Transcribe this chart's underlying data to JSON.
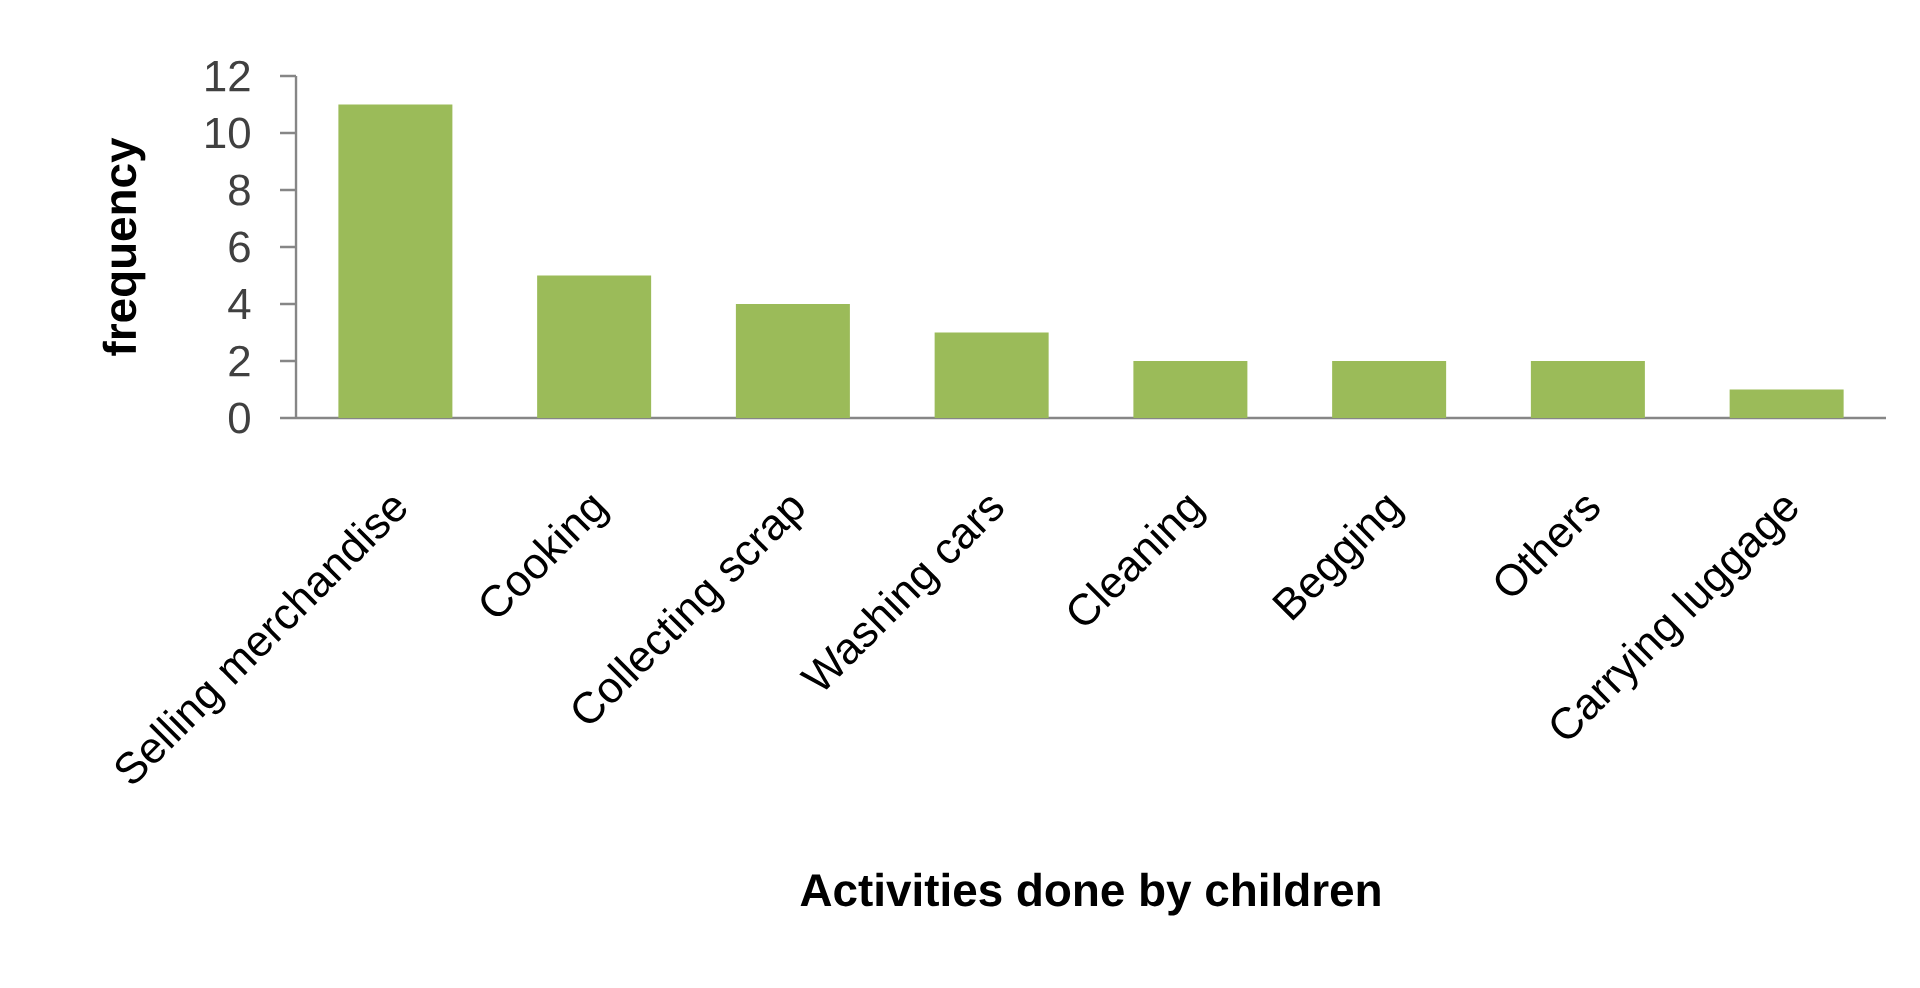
{
  "chart_data": {
    "type": "bar",
    "xlabel": "Activities done by children",
    "ylabel": "frequency",
    "categories": [
      "Selling merchandise",
      "Cooking",
      "Collecting scrap",
      "Washing cars",
      "Cleaning",
      "Begging",
      "Others",
      "Carrying luggage"
    ],
    "values": [
      11,
      5,
      4,
      3,
      2,
      2,
      2,
      1
    ],
    "color": "#9bbb59",
    "ylim": [
      0,
      12
    ],
    "yticks": [
      0,
      2,
      4,
      6,
      8,
      10,
      12
    ]
  }
}
